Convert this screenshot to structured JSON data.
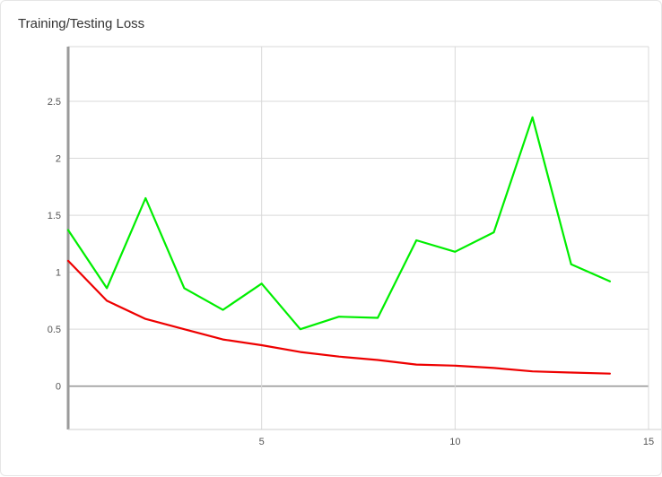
{
  "chart_data": {
    "type": "line",
    "title": "Training/Testing Loss",
    "xlabel": "",
    "ylabel": "",
    "xlim": [
      0,
      15
    ],
    "ylim": [
      -0.38,
      2.98
    ],
    "grid": true,
    "x_ticks": [
      5,
      10,
      15
    ],
    "y_ticks": [
      0,
      0.5,
      1,
      1.5,
      2,
      2.5
    ],
    "x_tick_labels": [
      "5",
      "10",
      "15"
    ],
    "y_tick_labels": [
      "0",
      "0.5",
      "1",
      "1.5",
      "2",
      "2.5"
    ],
    "x": [
      0,
      1,
      2,
      3,
      4,
      5,
      6,
      7,
      8,
      9,
      10,
      11,
      12,
      13,
      14
    ],
    "series": [
      {
        "color": "#00ee00",
        "values": [
          1.37,
          0.86,
          1.65,
          0.86,
          0.67,
          0.9,
          0.5,
          0.61,
          0.6,
          1.28,
          1.18,
          1.35,
          2.36,
          1.07,
          0.92
        ]
      },
      {
        "color": "#ee0000",
        "values": [
          1.1,
          0.75,
          0.59,
          0.5,
          0.41,
          0.36,
          0.3,
          0.26,
          0.23,
          0.19,
          0.18,
          0.16,
          0.13,
          0.12,
          0.11
        ]
      }
    ]
  }
}
